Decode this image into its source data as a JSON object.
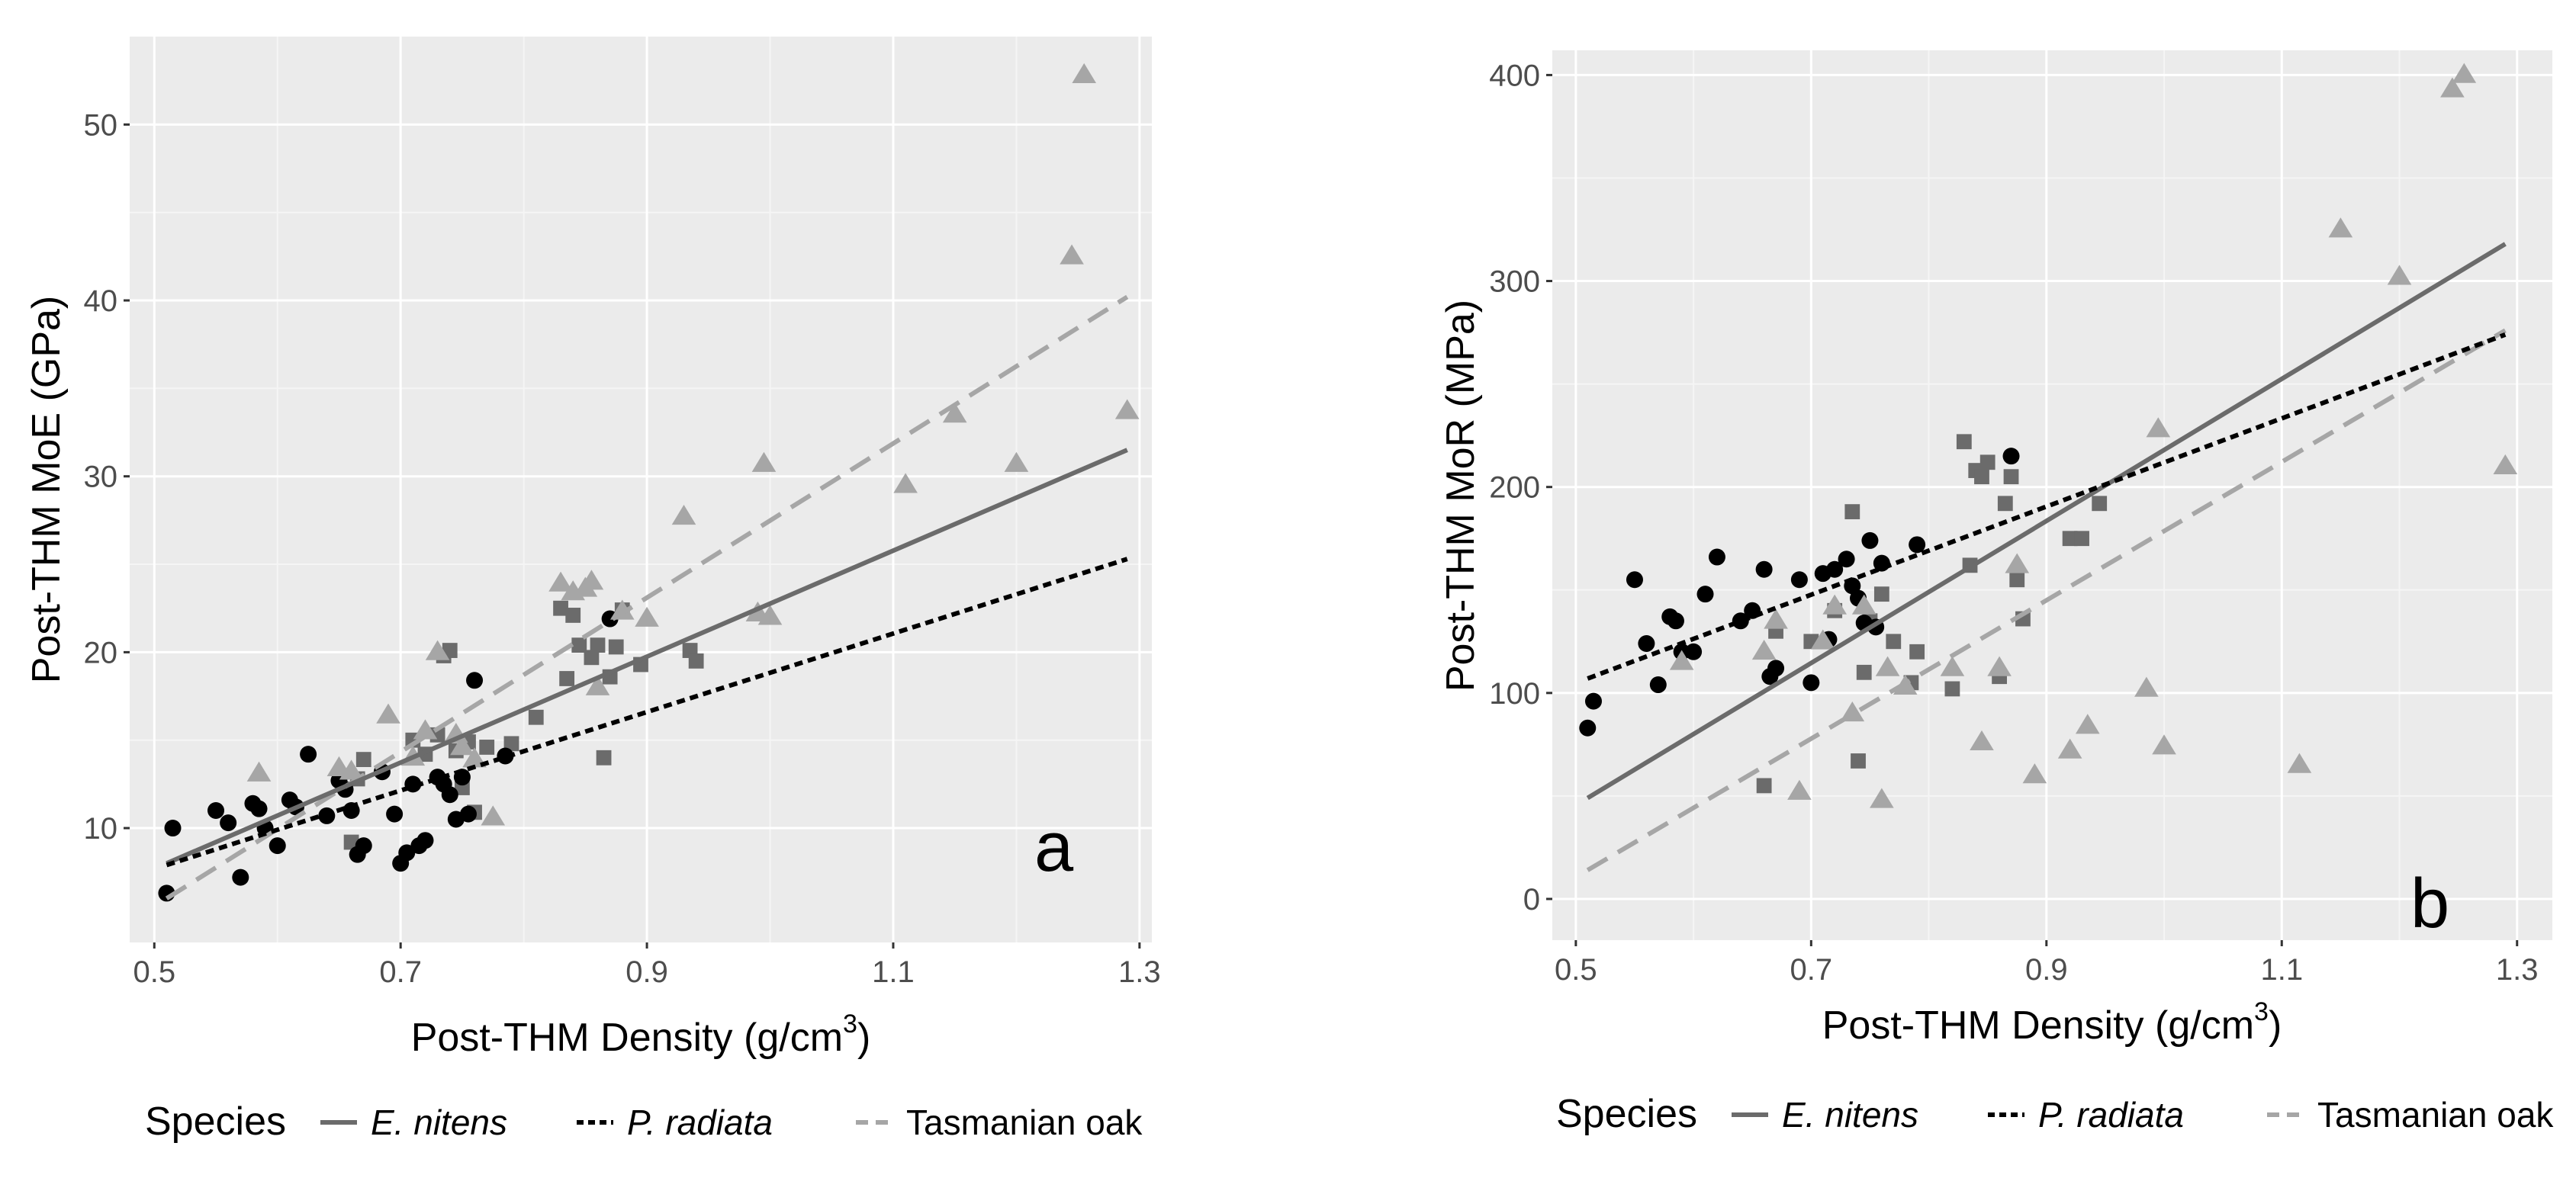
{
  "legend": {
    "title": "Species",
    "entries": [
      {
        "label": "E. nitens",
        "italic": true,
        "dash": "solid",
        "color": "#6b6b6b",
        "marker": "square"
      },
      {
        "label": "P. radiata",
        "italic": true,
        "dash": "dotted",
        "color": "#000000",
        "marker": "circle"
      },
      {
        "label": "Tasmanian oak",
        "italic": false,
        "dash": "dashed",
        "color": "#a6a6a6",
        "marker": "triangle"
      }
    ]
  },
  "colors": {
    "panel_bg": "#ebebeb",
    "grid_major": "#ffffff",
    "grid_minor": "#f5f5f5",
    "e_nitens": "#6b6b6b",
    "p_radiata": "#000000",
    "tasmanian_oak": "#a6a6a6"
  },
  "chart_data": [
    {
      "type": "scatter",
      "panel_label": "a",
      "xlabel": "Post-THM Density (g/cm",
      "xlabel_sup": "3",
      "xlabel_close": ")",
      "ylabel": "Post-THM MoE (GPa)",
      "xlim": [
        0.48,
        1.31
      ],
      "ylim": [
        3.5,
        55
      ],
      "x_ticks": [
        0.5,
        0.7,
        0.9,
        1.1,
        1.3
      ],
      "x_tick_labels": [
        "0.5",
        "0.7",
        "0.9",
        "1.1",
        "1.3"
      ],
      "y_ticks": [
        10,
        20,
        30,
        40,
        50
      ],
      "y_tick_labels": [
        "10",
        "20",
        "30",
        "40",
        "50"
      ],
      "series": [
        {
          "name": "E. nitens",
          "points": [
            [
              0.66,
              9.2
            ],
            [
              0.665,
              12.8
            ],
            [
              0.67,
              13.9
            ],
            [
              0.71,
              15.0
            ],
            [
              0.72,
              14.2
            ],
            [
              0.73,
              15.3
            ],
            [
              0.735,
              19.8
            ],
            [
              0.74,
              20.1
            ],
            [
              0.745,
              14.4
            ],
            [
              0.75,
              12.3
            ],
            [
              0.755,
              14.9
            ],
            [
              0.76,
              10.9
            ],
            [
              0.77,
              14.6
            ],
            [
              0.79,
              14.8
            ],
            [
              0.81,
              16.3
            ],
            [
              0.83,
              22.5
            ],
            [
              0.835,
              18.5
            ],
            [
              0.84,
              22.1
            ],
            [
              0.845,
              20.4
            ],
            [
              0.855,
              19.7
            ],
            [
              0.86,
              20.4
            ],
            [
              0.865,
              14.0
            ],
            [
              0.87,
              18.6
            ],
            [
              0.875,
              20.3
            ],
            [
              0.88,
              22.4
            ],
            [
              0.895,
              19.3
            ],
            [
              0.935,
              20.1
            ],
            [
              0.94,
              19.5
            ]
          ],
          "fit": [
            [
              0.51,
              8.0
            ],
            [
              1.29,
              31.5
            ]
          ]
        },
        {
          "name": "P. radiata",
          "points": [
            [
              0.51,
              6.3
            ],
            [
              0.515,
              10.0
            ],
            [
              0.55,
              11.0
            ],
            [
              0.56,
              10.3
            ],
            [
              0.57,
              7.2
            ],
            [
              0.58,
              11.4
            ],
            [
              0.585,
              11.1
            ],
            [
              0.59,
              10.0
            ],
            [
              0.6,
              9.0
            ],
            [
              0.61,
              11.6
            ],
            [
              0.615,
              11.2
            ],
            [
              0.625,
              14.2
            ],
            [
              0.64,
              10.7
            ],
            [
              0.65,
              12.7
            ],
            [
              0.655,
              12.2
            ],
            [
              0.66,
              11.0
            ],
            [
              0.665,
              8.5
            ],
            [
              0.67,
              9.0
            ],
            [
              0.685,
              13.2
            ],
            [
              0.695,
              10.8
            ],
            [
              0.7,
              8.0
            ],
            [
              0.705,
              8.6
            ],
            [
              0.71,
              12.5
            ],
            [
              0.715,
              9.0
            ],
            [
              0.72,
              9.3
            ],
            [
              0.73,
              12.9
            ],
            [
              0.735,
              12.5
            ],
            [
              0.74,
              11.9
            ],
            [
              0.745,
              10.5
            ],
            [
              0.75,
              12.9
            ],
            [
              0.755,
              10.8
            ],
            [
              0.76,
              18.4
            ],
            [
              0.785,
              14.1
            ],
            [
              0.87,
              21.9
            ]
          ],
          "fit": [
            [
              0.51,
              7.9
            ],
            [
              1.29,
              25.3
            ]
          ]
        },
        {
          "name": "Tasmanian oak",
          "points": [
            [
              0.585,
              13.1
            ],
            [
              0.65,
              13.4
            ],
            [
              0.66,
              13.2
            ],
            [
              0.69,
              16.4
            ],
            [
              0.71,
              14.0
            ],
            [
              0.72,
              15.5
            ],
            [
              0.73,
              20.0
            ],
            [
              0.745,
              15.3
            ],
            [
              0.75,
              14.6
            ],
            [
              0.76,
              13.9
            ],
            [
              0.775,
              10.6
            ],
            [
              0.83,
              23.9
            ],
            [
              0.84,
              23.4
            ],
            [
              0.85,
              23.6
            ],
            [
              0.855,
              24.0
            ],
            [
              0.86,
              18.0
            ],
            [
              0.88,
              22.3
            ],
            [
              0.9,
              21.9
            ],
            [
              0.93,
              27.7
            ],
            [
              0.99,
              22.2
            ],
            [
              0.995,
              30.7
            ],
            [
              1.0,
              22.0
            ],
            [
              1.11,
              29.5
            ],
            [
              1.15,
              33.5
            ],
            [
              1.2,
              30.7
            ],
            [
              1.245,
              42.5
            ],
            [
              1.255,
              52.8
            ],
            [
              1.29,
              33.7
            ]
          ],
          "fit": [
            [
              0.51,
              6.0
            ],
            [
              1.29,
              40.2
            ]
          ]
        }
      ]
    },
    {
      "type": "scatter",
      "panel_label": "b",
      "xlabel": "Post-THM Density (g/cm",
      "xlabel_sup": "3",
      "xlabel_close": ")",
      "ylabel": "Post-THM MoR (MPa)",
      "xlim": [
        0.48,
        1.33
      ],
      "ylim": [
        -20,
        412
      ],
      "x_ticks": [
        0.5,
        0.7,
        0.9,
        1.1,
        1.3
      ],
      "x_tick_labels": [
        "0.5",
        "0.7",
        "0.9",
        "1.1",
        "1.3"
      ],
      "y_ticks": [
        0,
        100,
        200,
        300,
        400
      ],
      "y_tick_labels": [
        "0",
        "100",
        "200",
        "300",
        "400"
      ],
      "series": [
        {
          "name": "E. nitens",
          "points": [
            [
              0.66,
              55
            ],
            [
              0.67,
              130
            ],
            [
              0.7,
              125
            ],
            [
              0.72,
              140
            ],
            [
              0.735,
              188
            ],
            [
              0.74,
              67
            ],
            [
              0.745,
              110
            ],
            [
              0.75,
              135
            ],
            [
              0.76,
              148
            ],
            [
              0.77,
              125
            ],
            [
              0.785,
              105
            ],
            [
              0.79,
              120
            ],
            [
              0.82,
              102
            ],
            [
              0.83,
              222
            ],
            [
              0.835,
              162
            ],
            [
              0.84,
              208
            ],
            [
              0.845,
              205
            ],
            [
              0.85,
              212
            ],
            [
              0.86,
              108
            ],
            [
              0.865,
              192
            ],
            [
              0.87,
              205
            ],
            [
              0.875,
              155
            ],
            [
              0.88,
              136
            ],
            [
              0.92,
              175
            ],
            [
              0.93,
              175
            ],
            [
              0.945,
              192
            ]
          ],
          "fit": [
            [
              0.51,
              49
            ],
            [
              1.29,
              318
            ]
          ]
        },
        {
          "name": "P. radiata",
          "points": [
            [
              0.51,
              83
            ],
            [
              0.515,
              96
            ],
            [
              0.55,
              155
            ],
            [
              0.56,
              124
            ],
            [
              0.57,
              104
            ],
            [
              0.58,
              137
            ],
            [
              0.585,
              135
            ],
            [
              0.59,
              120
            ],
            [
              0.6,
              120
            ],
            [
              0.61,
              148
            ],
            [
              0.62,
              166
            ],
            [
              0.64,
              135
            ],
            [
              0.65,
              140
            ],
            [
              0.66,
              160
            ],
            [
              0.665,
              108
            ],
            [
              0.67,
              112
            ],
            [
              0.69,
              155
            ],
            [
              0.7,
              105
            ],
            [
              0.71,
              158
            ],
            [
              0.715,
              126
            ],
            [
              0.72,
              160
            ],
            [
              0.73,
              165
            ],
            [
              0.735,
              152
            ],
            [
              0.74,
              146
            ],
            [
              0.745,
              134
            ],
            [
              0.75,
              174
            ],
            [
              0.755,
              132
            ],
            [
              0.76,
              163
            ],
            [
              0.79,
              172
            ],
            [
              0.87,
              215
            ]
          ],
          "fit": [
            [
              0.51,
              107
            ],
            [
              1.29,
              274
            ]
          ]
        },
        {
          "name": "Tasmanian oak",
          "points": [
            [
              0.59,
              115
            ],
            [
              0.66,
              120
            ],
            [
              0.67,
              135
            ],
            [
              0.69,
              52
            ],
            [
              0.71,
              125
            ],
            [
              0.72,
              142
            ],
            [
              0.735,
              90
            ],
            [
              0.745,
              142
            ],
            [
              0.76,
              48
            ],
            [
              0.765,
              112
            ],
            [
              0.78,
              103
            ],
            [
              0.82,
              112
            ],
            [
              0.845,
              76
            ],
            [
              0.86,
              112
            ],
            [
              0.875,
              162
            ],
            [
              0.89,
              60
            ],
            [
              0.92,
              72
            ],
            [
              0.935,
              84
            ],
            [
              0.985,
              102
            ],
            [
              0.995,
              228
            ],
            [
              1.0,
              74
            ],
            [
              1.115,
              65
            ],
            [
              1.15,
              325
            ],
            [
              1.2,
              302
            ],
            [
              1.245,
              393
            ],
            [
              1.255,
              400
            ],
            [
              1.29,
              210
            ]
          ],
          "fit": [
            [
              0.51,
              14
            ],
            [
              1.29,
              276
            ]
          ]
        }
      ]
    }
  ]
}
